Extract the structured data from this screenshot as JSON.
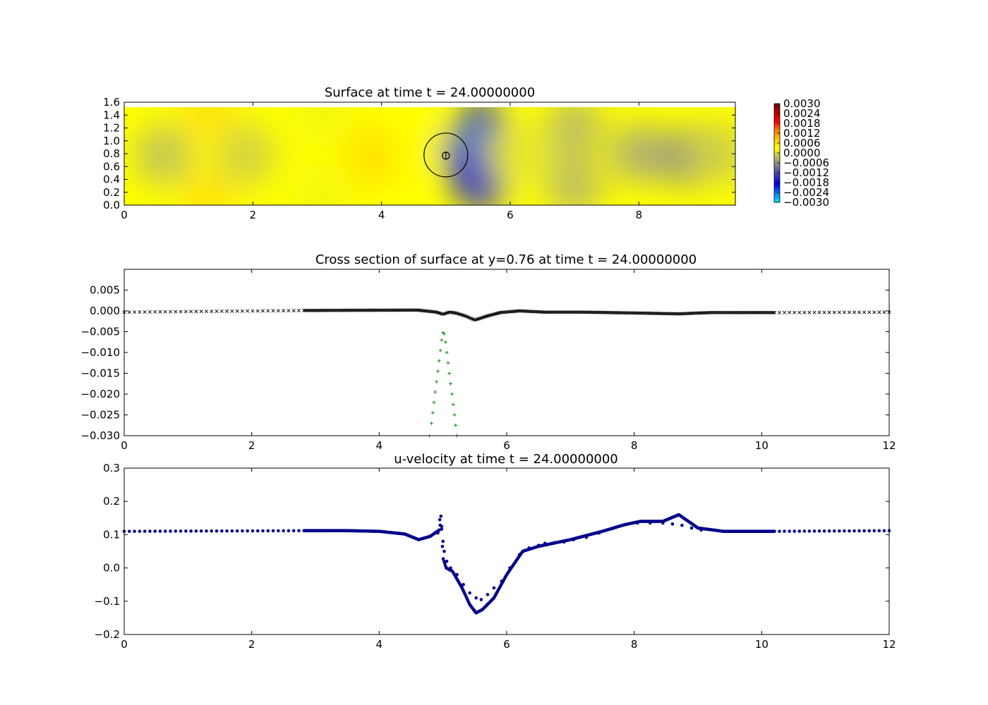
{
  "chart_data": [
    {
      "type": "heatmap",
      "title": "Surface at time t =    24.00000000",
      "xlim": [
        0,
        9.5
      ],
      "ylim": [
        0,
        1.6
      ],
      "x_ticks": [
        "0",
        "2",
        "4",
        "6",
        "8"
      ],
      "y_ticks": [
        "0.0",
        "0.2",
        "0.4",
        "0.6",
        "0.8",
        "1.0",
        "1.2",
        "1.4",
        "1.6"
      ],
      "colorbar": {
        "range": [
          -0.003,
          0.003
        ],
        "ticks": [
          "0.0030",
          "0.0024",
          "0.0018",
          "0.0012",
          "0.0006",
          "0.0000",
          "−0.0006",
          "−0.0012",
          "−0.0018",
          "−0.0024",
          "−0.0030"
        ],
        "colors": [
          "#00e5ff",
          "#0a7cff",
          "#0000d8",
          "#3838b8",
          "#7a7a8a",
          "#b8b86a",
          "#ffff00",
          "#ffc800",
          "#ff8000",
          "#ff0000",
          "#c00000",
          "#600000"
        ]
      },
      "fields": [
        {
          "x": 1.3,
          "y": 0.15,
          "value": 0.00055
        },
        {
          "x": 1.3,
          "y": 1.45,
          "value": 0.00055
        },
        {
          "x": 0.6,
          "y": 0.78,
          "value": -0.00015
        },
        {
          "x": 1.9,
          "y": 0.78,
          "value": -5e-05
        },
        {
          "x": 3.1,
          "y": 1.4,
          "value": 0.0002
        },
        {
          "x": 3.1,
          "y": 0.15,
          "value": 0.0002
        },
        {
          "x": 3.9,
          "y": 0.78,
          "value": 0.0006
        },
        {
          "x": 4.5,
          "y": 1.0,
          "value": 0.0003
        },
        {
          "x": 5.3,
          "y": 0.8,
          "value": -0.0012
        },
        {
          "x": 5.55,
          "y": 1.25,
          "value": -0.0012
        },
        {
          "x": 5.55,
          "y": 0.3,
          "value": -0.0012
        },
        {
          "x": 5.5,
          "y": 0.92,
          "value": -0.0026
        },
        {
          "x": 5.6,
          "y": 0.55,
          "value": -0.0021
        },
        {
          "x": 5.35,
          "y": 0.5,
          "value": -0.0019
        },
        {
          "x": 5.85,
          "y": 0.8,
          "value": -0.0006
        },
        {
          "x": 6.2,
          "y": 0.78,
          "value": 0.0001
        },
        {
          "x": 7.0,
          "y": 1.2,
          "value": -0.0002
        },
        {
          "x": 7.0,
          "y": 0.3,
          "value": -0.0002
        },
        {
          "x": 8.0,
          "y": 0.8,
          "value": -0.0003
        },
        {
          "x": 8.7,
          "y": 0.75,
          "value": -0.0005
        },
        {
          "x": 9.2,
          "y": 0.8,
          "value": -0.0001
        }
      ],
      "markers": {
        "cylinder": {
          "x": 5.0,
          "y": 0.78,
          "radius": 0.34
        },
        "probe": {
          "x": 5.0,
          "y": 0.77,
          "radius": 0.055
        }
      }
    },
    {
      "type": "scatter",
      "title": "Cross section of surface at y=0.76 at time t =    24.00000000",
      "xlim": [
        0,
        12
      ],
      "ylim": [
        -0.03,
        0.01
      ],
      "x_ticks": [
        "0",
        "2",
        "4",
        "6",
        "8",
        "10",
        "12"
      ],
      "y_ticks": [
        "−0.030",
        "−0.025",
        "−0.020",
        "−0.015",
        "−0.010",
        "−0.005",
        "0.000",
        "0.005"
      ],
      "series": [
        {
          "marker": "x",
          "color": "#000000",
          "segments": [
            {
              "x_range": [
                0,
                2.82
              ],
              "spacing": 0.08,
              "points": [
                [
                  0,
                  -0.0003
                ],
                [
                  2.82,
                  0.0001
                ]
              ]
            },
            {
              "x_range": [
                2.82,
                10.2
              ],
              "spacing": 0.022,
              "points": [
                [
                  2.82,
                  0.0001
                ],
                [
                  4.6,
                  0.0002
                ],
                [
                  4.9,
                  -0.0003
                ],
                [
                  5.0,
                  -0.0008
                ],
                [
                  5.1,
                  -0.0003
                ],
                [
                  5.2,
                  -0.0005
                ],
                [
                  5.35,
                  -0.0012
                ],
                [
                  5.5,
                  -0.0022
                ],
                [
                  5.7,
                  -0.0012
                ],
                [
                  5.9,
                  -0.0004
                ],
                [
                  6.2,
                  0.0
                ],
                [
                  6.6,
                  -0.0003
                ],
                [
                  7.2,
                  -0.0003
                ],
                [
                  8.0,
                  -0.0005
                ],
                [
                  8.7,
                  -0.0007
                ],
                [
                  9.2,
                  -0.0004
                ],
                [
                  10.2,
                  -0.0004
                ]
              ]
            },
            {
              "x_range": [
                10.2,
                12
              ],
              "spacing": 0.08,
              "points": [
                [
                  10.2,
                  -0.0004
                ],
                [
                  12,
                  -0.0003
                ]
              ]
            }
          ]
        },
        {
          "marker": "+",
          "color": "#008000",
          "points": [
            [
              4.79,
              -0.03
            ],
            [
              4.82,
              -0.027
            ],
            [
              4.84,
              -0.0245
            ],
            [
              4.86,
              -0.022
            ],
            [
              4.88,
              -0.0195
            ],
            [
              4.9,
              -0.017
            ],
            [
              4.92,
              -0.0145
            ],
            [
              4.94,
              -0.012
            ],
            [
              4.96,
              -0.0095
            ],
            [
              4.98,
              -0.007
            ],
            [
              5.0,
              -0.0052
            ],
            [
              5.02,
              -0.0055
            ],
            [
              5.04,
              -0.0075
            ],
            [
              5.06,
              -0.01
            ],
            [
              5.08,
              -0.0125
            ],
            [
              5.1,
              -0.015
            ],
            [
              5.12,
              -0.0175
            ],
            [
              5.14,
              -0.02
            ],
            [
              5.16,
              -0.0225
            ],
            [
              5.18,
              -0.025
            ],
            [
              5.2,
              -0.0275
            ],
            [
              5.22,
              -0.03
            ]
          ]
        }
      ]
    },
    {
      "type": "scatter",
      "title": "u-velocity at time t =    24.00000000",
      "xlim": [
        0,
        12
      ],
      "ylim": [
        -0.2,
        0.3
      ],
      "x_ticks": [
        "0",
        "2",
        "4",
        "6",
        "8",
        "10",
        "12"
      ],
      "y_ticks": [
        "−0.2",
        "−0.1",
        "0.0",
        "0.1",
        "0.2",
        "0.3"
      ],
      "series": [
        {
          "marker": "o",
          "color": "#00008b",
          "segments": [
            {
              "x_range": [
                0,
                2.82
              ],
              "spacing": 0.08,
              "points": [
                [
                  0,
                  0.11
                ],
                [
                  2.82,
                  0.112
                ]
              ]
            },
            {
              "x_range": [
                2.82,
                10.2
              ],
              "spacing": 0.012,
              "points": [
                [
                  2.82,
                  0.112
                ],
                [
                  3.5,
                  0.112
                ],
                [
                  4.0,
                  0.11
                ],
                [
                  4.4,
                  0.102
                ],
                [
                  4.62,
                  0.085
                ],
                [
                  4.8,
                  0.095
                ],
                [
                  4.95,
                  0.115
                ],
                [
                  4.97,
                  0.16
                ],
                [
                  5.0,
                  0.03
                ],
                [
                  5.05,
                  0.0
                ],
                [
                  5.15,
                  -0.01
                ],
                [
                  5.3,
                  -0.06
                ],
                [
                  5.42,
                  -0.11
                ],
                [
                  5.52,
                  -0.135
                ],
                [
                  5.62,
                  -0.125
                ],
                [
                  5.8,
                  -0.09
                ],
                [
                  6.0,
                  -0.02
                ],
                [
                  6.25,
                  0.05
                ],
                [
                  6.5,
                  0.065
                ],
                [
                  7.0,
                  0.085
                ],
                [
                  7.5,
                  0.11
                ],
                [
                  7.85,
                  0.13
                ],
                [
                  8.1,
                  0.14
                ],
                [
                  8.45,
                  0.14
                ],
                [
                  8.7,
                  0.16
                ],
                [
                  8.85,
                  0.14
                ],
                [
                  9.0,
                  0.12
                ],
                [
                  9.4,
                  0.11
                ],
                [
                  10.2,
                  0.11
                ]
              ]
            },
            {
              "x_range": [
                10.2,
                12
              ],
              "spacing": 0.08,
              "points": [
                [
                  10.2,
                  0.11
                ],
                [
                  12,
                  0.112
                ]
              ]
            }
          ]
        },
        {
          "marker": "o",
          "color": "#00008b",
          "points": [
            [
              4.92,
              0.105
            ],
            [
              4.95,
              0.145
            ],
            [
              4.98,
              0.125
            ],
            [
              5.0,
              0.08
            ],
            [
              5.02,
              0.05
            ],
            [
              5.06,
              0.02
            ],
            [
              5.12,
              0.0
            ],
            [
              5.22,
              -0.02
            ],
            [
              5.32,
              -0.05
            ],
            [
              5.42,
              -0.075
            ],
            [
              5.52,
              -0.09
            ],
            [
              5.6,
              -0.095
            ],
            [
              5.7,
              -0.08
            ],
            [
              5.8,
              -0.06
            ],
            [
              5.92,
              -0.04
            ],
            [
              6.05,
              0.0
            ],
            [
              6.2,
              0.04
            ],
            [
              6.35,
              0.06
            ],
            [
              6.5,
              0.068
            ],
            [
              6.6,
              0.074
            ],
            [
              6.75,
              0.076
            ],
            [
              6.9,
              0.078
            ],
            [
              7.05,
              0.085
            ],
            [
              7.25,
              0.092
            ],
            [
              7.45,
              0.105
            ],
            [
              7.65,
              0.118
            ],
            [
              7.85,
              0.13
            ],
            [
              8.05,
              0.135
            ],
            [
              8.25,
              0.135
            ],
            [
              8.45,
              0.135
            ],
            [
              8.6,
              0.132
            ],
            [
              8.75,
              0.128
            ],
            [
              8.9,
              0.12
            ],
            [
              9.05,
              0.114
            ]
          ]
        }
      ]
    }
  ]
}
